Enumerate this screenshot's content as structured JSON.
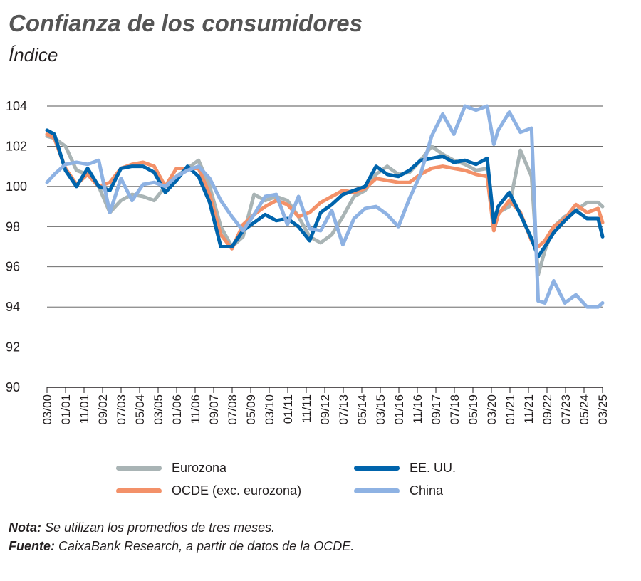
{
  "header": {
    "title": "Confianza de los consumidores",
    "subtitle": "Índice"
  },
  "chart_data": {
    "type": "line",
    "title": "Confianza de los consumidores",
    "subtitle": "Índice",
    "ylabel": "",
    "xlabel": "",
    "ylim": [
      90,
      104
    ],
    "yticks": [
      90,
      92,
      94,
      96,
      98,
      100,
      102,
      104
    ],
    "x_tick_labels": [
      "03/00",
      "01/01",
      "11/01",
      "09/02",
      "07/03",
      "05/04",
      "03/05",
      "01/06",
      "11/06",
      "09/07",
      "07/08",
      "05/09",
      "03/10",
      "01/11",
      "11/11",
      "09/12",
      "07/13",
      "05/14",
      "03/15",
      "01/16",
      "11/16",
      "09/17",
      "07/18",
      "05/19",
      "03/20",
      "01/21",
      "11/21",
      "09/22",
      "07/23",
      "05/24",
      "03/25"
    ],
    "grid": "horizontal",
    "legend_position": "bottom",
    "x": [
      2000.17,
      2000.5,
      2001.0,
      2001.5,
      2002.0,
      2002.5,
      2003.0,
      2003.5,
      2004.0,
      2004.5,
      2005.0,
      2005.5,
      2006.0,
      2006.5,
      2007.0,
      2007.5,
      2008.0,
      2008.5,
      2009.0,
      2009.5,
      2010.0,
      2010.5,
      2011.0,
      2011.5,
      2012.0,
      2012.5,
      2013.0,
      2013.5,
      2014.0,
      2014.5,
      2015.0,
      2015.5,
      2016.0,
      2016.5,
      2017.0,
      2017.5,
      2018.0,
      2018.5,
      2019.0,
      2019.5,
      2020.0,
      2020.3,
      2020.5,
      2021.0,
      2021.5,
      2022.0,
      2022.3,
      2022.6,
      2023.0,
      2023.5,
      2024.0,
      2024.5,
      2025.0,
      2025.2
    ],
    "series": [
      {
        "name": "Eurozona",
        "color": "#a9b4b5",
        "values": [
          102.5,
          102.4,
          102.0,
          100.8,
          100.6,
          100.0,
          98.7,
          99.3,
          99.6,
          99.5,
          99.3,
          100.0,
          100.5,
          100.9,
          101.3,
          100.0,
          98.0,
          97.0,
          97.5,
          99.6,
          99.3,
          99.5,
          99.3,
          98.5,
          97.5,
          97.2,
          97.6,
          98.5,
          99.5,
          99.8,
          100.6,
          101.0,
          100.6,
          100.7,
          101.3,
          102.0,
          101.6,
          101.3,
          101.1,
          100.8,
          100.9,
          98.3,
          98.7,
          99.0,
          101.8,
          100.5,
          95.6,
          96.8,
          98.0,
          98.5,
          98.8,
          99.2,
          99.2,
          99.0
        ]
      },
      {
        "name": "EE. UU.",
        "color": "#0064ac",
        "values": [
          102.8,
          102.6,
          100.8,
          100.0,
          100.9,
          100.0,
          99.8,
          100.9,
          101.0,
          101.0,
          100.7,
          99.7,
          100.3,
          101.0,
          100.5,
          99.2,
          97.0,
          97.0,
          97.8,
          98.2,
          98.6,
          98.3,
          98.4,
          98.0,
          97.3,
          98.7,
          99.1,
          99.6,
          99.8,
          100.0,
          101.0,
          100.6,
          100.5,
          100.8,
          101.3,
          101.4,
          101.5,
          101.2,
          101.3,
          101.1,
          101.4,
          98.2,
          99.0,
          99.7,
          98.6,
          97.4,
          96.5,
          97.0,
          97.7,
          98.3,
          98.8,
          98.4,
          98.4,
          97.5
        ]
      },
      {
        "name": "OCDE (exc. eurozona)",
        "color": "#f39169",
        "values": [
          102.6,
          102.4,
          100.9,
          100.1,
          100.6,
          100.0,
          100.2,
          100.9,
          101.1,
          101.2,
          101.0,
          100.0,
          100.9,
          100.9,
          100.9,
          99.6,
          97.6,
          96.9,
          98.1,
          98.6,
          99.0,
          99.3,
          99.1,
          98.5,
          98.7,
          99.2,
          99.5,
          99.8,
          99.7,
          99.9,
          100.4,
          100.3,
          100.2,
          100.2,
          100.6,
          100.9,
          101.0,
          100.9,
          100.8,
          100.6,
          100.5,
          97.8,
          98.6,
          99.3,
          98.7,
          97.3,
          97.0,
          97.3,
          98.0,
          98.4,
          99.1,
          98.7,
          98.9,
          98.2
        ]
      },
      {
        "name": "China",
        "color": "#8eb2e3",
        "values": [
          100.2,
          100.6,
          101.1,
          101.2,
          101.1,
          101.3,
          98.7,
          100.4,
          99.3,
          100.1,
          100.2,
          100.0,
          100.5,
          100.8,
          101.0,
          100.4,
          99.3,
          98.5,
          97.8,
          98.6,
          99.5,
          99.6,
          98.1,
          99.5,
          97.9,
          97.8,
          98.8,
          97.1,
          98.4,
          98.9,
          99.0,
          98.6,
          98.0,
          99.4,
          100.6,
          102.5,
          103.6,
          102.6,
          104.0,
          103.8,
          104.0,
          102.1,
          102.8,
          103.7,
          102.7,
          102.9,
          94.3,
          94.2,
          95.3,
          94.2,
          94.6,
          94.0,
          94.0,
          94.2
        ]
      }
    ]
  },
  "legend": {
    "items": [
      "Eurozona",
      "EE. UU.",
      "OCDE (exc. eurozona)",
      "China"
    ]
  },
  "notes": {
    "nota_label": "Nota:",
    "nota_text": " Se utilizan los promedios de tres meses.",
    "fuente_label": "Fuente:",
    "fuente_text": " CaixaBank Research, a partir de datos de la OCDE."
  }
}
